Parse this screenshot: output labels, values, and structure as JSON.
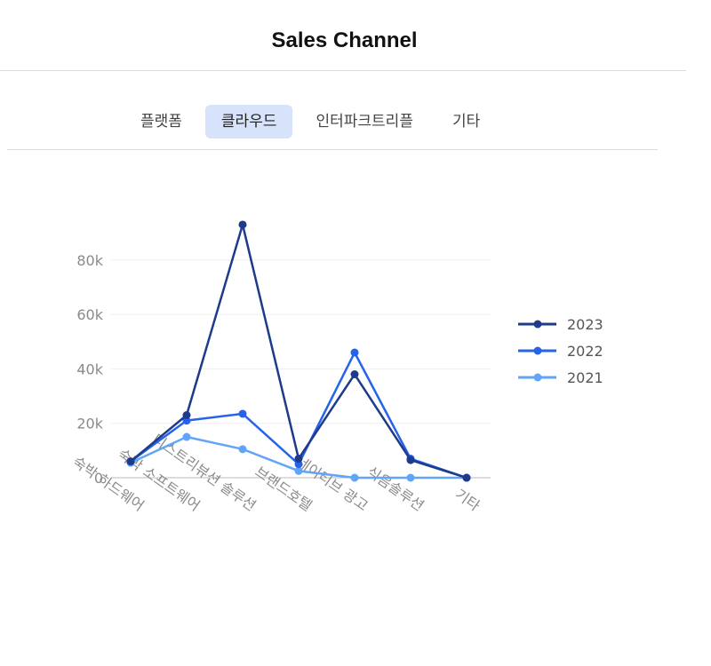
{
  "header": {
    "title": "Sales Channel"
  },
  "tabs": [
    {
      "label": "플랫폼",
      "active": false
    },
    {
      "label": "클라우드",
      "active": true
    },
    {
      "label": "인터파크트리플",
      "active": false
    },
    {
      "label": "기타",
      "active": false
    }
  ],
  "chart_data": {
    "type": "line",
    "categories": [
      "숙박 하드웨어",
      "숙박 소프트웨어",
      "디스트리뷰션 솔루션",
      "브랜드호텔",
      "네이티브 광고",
      "식음솔루션",
      "기타"
    ],
    "series": [
      {
        "name": "2023",
        "color": "#1e3a8a",
        "values": [
          6000,
          23000,
          93000,
          7000,
          38000,
          6500,
          0
        ]
      },
      {
        "name": "2022",
        "color": "#2563eb",
        "values": [
          6000,
          21000,
          23500,
          5000,
          46000,
          7000,
          0
        ]
      },
      {
        "name": "2021",
        "color": "#60a5fa",
        "values": [
          5500,
          15000,
          10500,
          2500,
          0,
          0,
          0
        ]
      }
    ],
    "yticks": [
      "0",
      "20k",
      "40k",
      "60k",
      "80k"
    ],
    "ylim": [
      0,
      100000
    ],
    "grid": true,
    "legend": "right"
  }
}
